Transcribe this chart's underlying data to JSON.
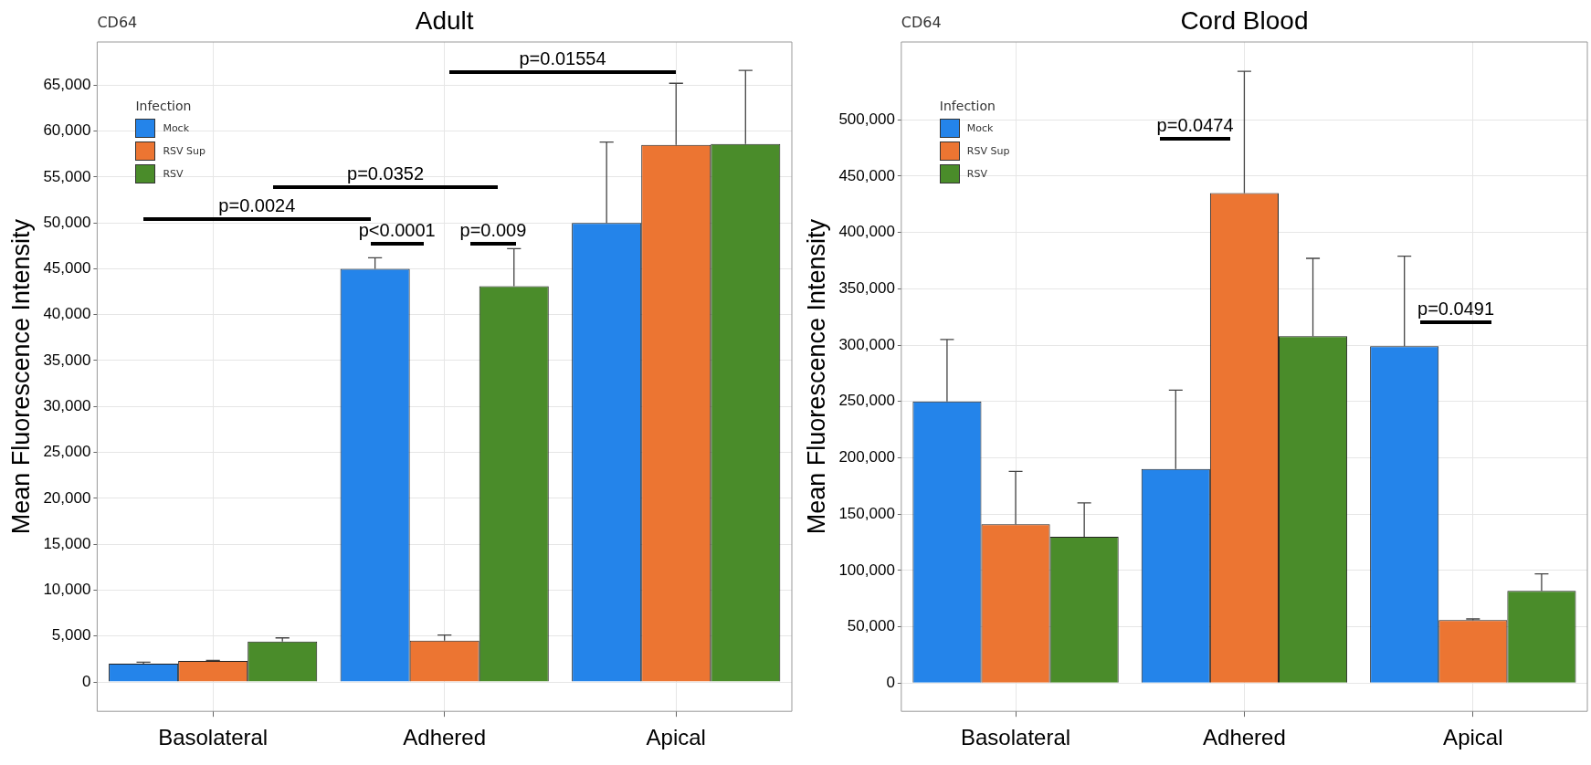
{
  "chart_data": [
    {
      "type": "bar",
      "title": "Adult",
      "subtitle": "CD64",
      "ylabel": "Mean Fluorescence Intensity",
      "legend_title": "Infection",
      "legend": "top left",
      "grid": true,
      "categories": [
        "Basolateral",
        "Adhered",
        "Apical"
      ],
      "series": [
        {
          "name": "Mock",
          "color": "#2484ea",
          "values": [
            2000,
            45000,
            50000
          ],
          "errors": [
            [
              2000,
              2150
            ],
            [
              45000,
              46200
            ],
            [
              50000,
              58800
            ]
          ]
        },
        {
          "name": "RSV Sup",
          "color": "#ec7532",
          "values": [
            2300,
            4500,
            58500
          ],
          "errors": [
            [
              2300,
              2350
            ],
            [
              4500,
              5100
            ],
            [
              58500,
              65200
            ]
          ]
        },
        {
          "name": "RSV",
          "color": "#4a8c2a",
          "values": [
            4400,
            43100,
            58600
          ],
          "errors": [
            [
              4400,
              4800
            ],
            [
              43100,
              47200
            ],
            [
              58600,
              66600
            ]
          ]
        }
      ],
      "ylim": [
        -3200,
        69700
      ],
      "yticks": [
        {
          "value": 0,
          "label": "0"
        },
        {
          "value": 5000,
          "label": "5,000"
        },
        {
          "value": 10000,
          "label": "10,000"
        },
        {
          "value": 15000,
          "label": "15,000"
        },
        {
          "value": 20000,
          "label": "20,000"
        },
        {
          "value": 25000,
          "label": "25,000"
        },
        {
          "value": 30000,
          "label": "30,000"
        },
        {
          "value": 35000,
          "label": "35,000"
        },
        {
          "value": 40000,
          "label": "40,000"
        },
        {
          "value": 45000,
          "label": "45,000"
        },
        {
          "value": 50000,
          "label": "50,000"
        },
        {
          "value": 55000,
          "label": "55,000"
        },
        {
          "value": 60000,
          "label": "60,000"
        },
        {
          "value": 65000,
          "label": "65,000"
        }
      ],
      "annotations": [
        "p=0.0024",
        "p=0.0352",
        "p=0.01554",
        "p<0.0001",
        "p=0.009"
      ]
    },
    {
      "type": "bar",
      "title": "Cord Blood",
      "subtitle": "CD64",
      "ylabel": "Mean Fluorescence Intensity",
      "legend_title": "Infection",
      "legend": "top left",
      "grid": true,
      "categories": [
        "Basolateral",
        "Adhered",
        "Apical"
      ],
      "series": [
        {
          "name": "Mock",
          "color": "#2484ea",
          "values": [
            250000,
            190000,
            299000
          ],
          "errors": [
            [
              250000,
              305000
            ],
            [
              190000,
              260000
            ],
            [
              299000,
              379000
            ]
          ]
        },
        {
          "name": "RSV Sup",
          "color": "#ec7532",
          "values": [
            141000,
            435000,
            56000
          ],
          "errors": [
            [
              141000,
              188000
            ],
            [
              435000,
              543000
            ],
            [
              56000,
              57000
            ]
          ]
        },
        {
          "name": "RSV",
          "color": "#4a8c2a",
          "values": [
            130000,
            308000,
            82000
          ],
          "errors": [
            [
              130000,
              160000
            ],
            [
              308000,
              377000
            ],
            [
              82000,
              97000
            ]
          ]
        }
      ],
      "ylim": [
        -25000,
        569000
      ],
      "yticks": [
        {
          "value": 0,
          "label": "0"
        },
        {
          "value": 50000,
          "label": "50,000"
        },
        {
          "value": 100000,
          "label": "100,000"
        },
        {
          "value": 150000,
          "label": "150,000"
        },
        {
          "value": 200000,
          "label": "200,000"
        },
        {
          "value": 250000,
          "label": "250,000"
        },
        {
          "value": 300000,
          "label": "300,000"
        },
        {
          "value": 350000,
          "label": "350,000"
        },
        {
          "value": 400000,
          "label": "400,000"
        },
        {
          "value": 450000,
          "label": "450,000"
        },
        {
          "value": 500000,
          "label": "500,000"
        }
      ],
      "annotations": [
        "p=0.0474",
        "p=0.0491"
      ]
    }
  ]
}
